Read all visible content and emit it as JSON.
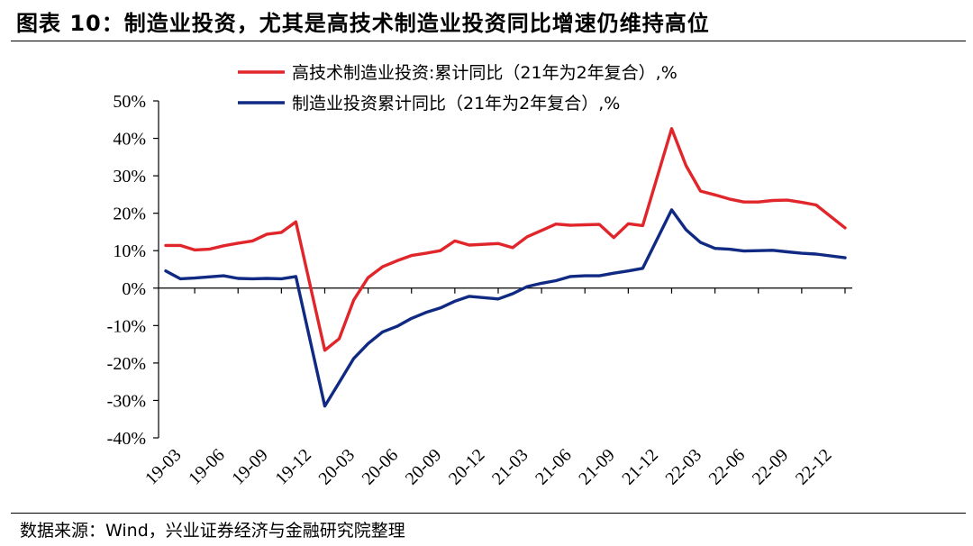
{
  "header": {
    "title": "图表 10：制造业投资，尤其是高技术制造业投资同比增速仍维持高位"
  },
  "footer": {
    "source": "数据来源：Wind，兴业证券经济与金融研究院整理"
  },
  "chart_data": {
    "type": "line",
    "title": "",
    "xlabel": "",
    "ylabel": "",
    "ylim": [
      -40,
      50
    ],
    "ytick_values": [
      50,
      40,
      30,
      20,
      10,
      0,
      -10,
      -20,
      -30,
      -40
    ],
    "ytick_labels": [
      "50%",
      "40%",
      "30%",
      "20%",
      "10%",
      "0%",
      "-10%",
      "-20%",
      "-30%",
      "-40%"
    ],
    "x": [
      "19-03",
      "19-04",
      "19-05",
      "19-06",
      "19-07",
      "19-08",
      "19-09",
      "19-10",
      "19-11",
      "19-12",
      "20-01",
      "20-02",
      "20-03",
      "20-04",
      "20-05",
      "20-06",
      "20-07",
      "20-08",
      "20-09",
      "20-10",
      "20-11",
      "20-12",
      "21-01",
      "21-02",
      "21-03",
      "21-04",
      "21-05",
      "21-06",
      "21-07",
      "21-08",
      "21-09",
      "21-10",
      "21-11",
      "21-12",
      "22-01",
      "22-02",
      "22-03",
      "22-04",
      "22-05",
      "22-06",
      "22-07",
      "22-08",
      "22-09",
      "22-10",
      "22-11",
      "22-12",
      "23-01",
      "23-02"
    ],
    "xtick_labels": [
      "19-03",
      "19-06",
      "19-09",
      "19-12",
      "20-03",
      "20-06",
      "20-09",
      "20-12",
      "21-03",
      "21-06",
      "21-09",
      "21-12",
      "22-03",
      "22-06",
      "22-09",
      "22-12"
    ],
    "legend_position": "top-center",
    "series": [
      {
        "name": "高技术制造业投资:累计同比（21年为2年复合）,%",
        "color": "#e0262a",
        "values": [
          11.4,
          11.4,
          10.2,
          10.4,
          11.3,
          12.0,
          12.6,
          14.4,
          14.9,
          17.7,
          null,
          -16.6,
          -13.5,
          -3.2,
          2.8,
          5.7,
          7.3,
          8.7,
          9.3,
          10.0,
          12.6,
          11.5,
          null,
          11.9,
          10.8,
          13.7,
          15.4,
          17.1,
          16.8,
          16.9,
          17.0,
          13.5,
          17.2,
          16.7,
          null,
          42.6,
          32.7,
          25.9,
          24.9,
          23.8,
          23.0,
          23.0,
          23.4,
          23.5,
          22.9,
          22.2,
          null,
          16.1
        ]
      },
      {
        "name": "制造业投资累计同比（21年为2年复合）,%",
        "color": "#102a83",
        "values": [
          4.6,
          2.5,
          2.7,
          3.0,
          3.3,
          2.6,
          2.5,
          2.6,
          2.5,
          3.1,
          null,
          -31.5,
          -25.2,
          -18.8,
          -14.8,
          -11.7,
          -10.2,
          -8.1,
          -6.5,
          -5.3,
          -3.5,
          -2.2,
          null,
          -2.9,
          -1.5,
          0.4,
          1.3,
          2.0,
          3.1,
          3.3,
          3.3,
          4.0,
          4.6,
          5.3,
          null,
          20.9,
          15.6,
          12.2,
          10.6,
          10.4,
          9.9,
          10.0,
          10.1,
          9.7,
          9.3,
          9.1,
          null,
          8.1
        ]
      }
    ]
  }
}
